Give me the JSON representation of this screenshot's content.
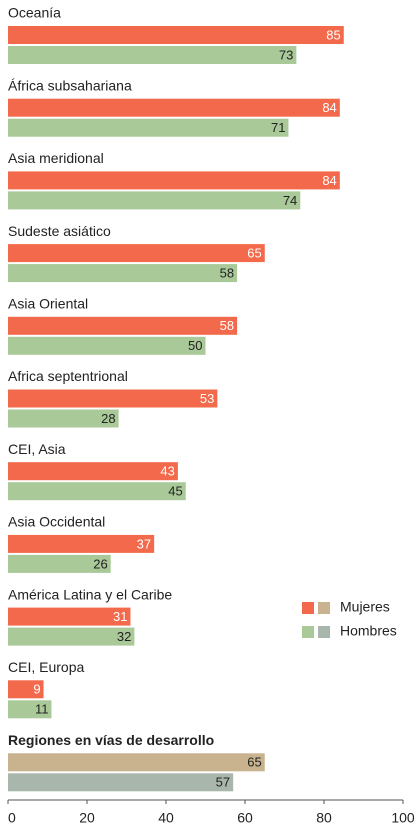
{
  "chart_data": {
    "type": "bar",
    "orientation": "horizontal",
    "categories": [
      "Oceanía",
      "África subsahariana",
      "Asia meridional",
      "Sudeste asiático",
      "Asia Oriental",
      "Africa septentrional",
      "CEI, Asia",
      "Asia Occidental",
      "América Latina y el Caribe",
      "CEI, Europa",
      "Regiones en vías de desarrollo"
    ],
    "series": [
      {
        "name": "Mujeres",
        "colors": [
          "#f2694b",
          "#f2694b",
          "#f2694b",
          "#f2694b",
          "#f2694b",
          "#f2694b",
          "#f2694b",
          "#f2694b",
          "#f2694b",
          "#f2694b",
          "#c8b38e"
        ],
        "values": [
          85,
          84,
          84,
          65,
          58,
          53,
          43,
          37,
          31,
          9,
          65
        ]
      },
      {
        "name": "Hombres",
        "colors": [
          "#a9c999",
          "#a9c999",
          "#a9c999",
          "#a9c999",
          "#a9c999",
          "#a9c999",
          "#a9c999",
          "#a9c999",
          "#a9c999",
          "#a9c999",
          "#a8b6ab"
        ],
        "values": [
          73,
          71,
          74,
          58,
          50,
          28,
          45,
          26,
          32,
          11,
          57
        ]
      }
    ],
    "xlim": [
      0,
      100
    ],
    "xticks": [
      0,
      20,
      40,
      60,
      80,
      100
    ],
    "legend": "right"
  }
}
